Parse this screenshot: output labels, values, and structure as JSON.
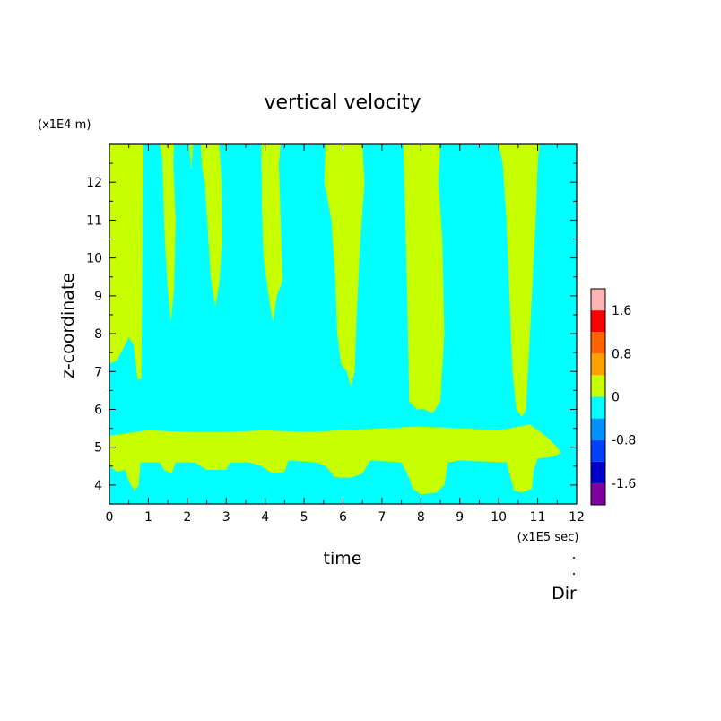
{
  "chart_data": {
    "type": "heatmap",
    "title": "vertical velocity",
    "xlabel": "time",
    "ylabel": "z-coordinate",
    "x_scale_label": "(x1E5 sec)",
    "y_scale_label": "(x1E4 m)",
    "corner_label": "Dir",
    "xlim": [
      0,
      12
    ],
    "ylim": [
      3.5,
      13.0
    ],
    "x_ticks": [
      "0",
      "1",
      "2",
      "3",
      "4",
      "5",
      "6",
      "7",
      "8",
      "9",
      "10",
      "11",
      "12"
    ],
    "y_ticks": [
      "4",
      "5",
      "6",
      "7",
      "8",
      "9",
      "10",
      "11",
      "12"
    ],
    "colorbar": {
      "tick_labels": [
        "1.6",
        "0.8",
        "0",
        "-0.8",
        "-1.6"
      ],
      "tick_values": [
        1.6,
        0.8,
        0,
        -0.8,
        -1.6
      ],
      "levels": [
        -2.0,
        -1.6,
        -1.2,
        -0.8,
        -0.4,
        0,
        0.4,
        0.8,
        1.2,
        1.6,
        2.0
      ],
      "colors": [
        "#8000a0",
        "#0000c8",
        "#0040ff",
        "#0090ff",
        "#00ffff",
        "#c8ff00",
        "#ffa000",
        "#ff6400",
        "#ff0000",
        "#ffb4b4"
      ]
    },
    "background_color": "#00ffff",
    "positive_color": "#c8ff00",
    "positive_regions": [
      [
        [
          0.0,
          13.0
        ],
        [
          0.0,
          7.2
        ],
        [
          0.2,
          7.3
        ],
        [
          0.5,
          7.9
        ],
        [
          0.62,
          7.7
        ],
        [
          0.72,
          6.8
        ],
        [
          0.82,
          6.8
        ],
        [
          0.88,
          13.0
        ]
      ],
      [
        [
          1.3,
          13.0
        ],
        [
          1.36,
          12.6
        ],
        [
          1.42,
          10.5
        ],
        [
          1.5,
          9.2
        ],
        [
          1.58,
          8.3
        ],
        [
          1.66,
          9.2
        ],
        [
          1.7,
          11.0
        ],
        [
          1.64,
          12.5
        ],
        [
          1.66,
          13.0
        ]
      ],
      [
        [
          2.05,
          13.0
        ],
        [
          2.1,
          12.3
        ],
        [
          2.15,
          13.0
        ]
      ],
      [
        [
          2.35,
          13.0
        ],
        [
          2.38,
          12.4
        ],
        [
          2.45,
          12.0
        ],
        [
          2.5,
          11.2
        ],
        [
          2.6,
          9.5
        ],
        [
          2.72,
          8.7
        ],
        [
          2.82,
          9.3
        ],
        [
          2.9,
          10.5
        ],
        [
          2.88,
          12.0
        ],
        [
          2.82,
          13.0
        ]
      ],
      [
        [
          3.9,
          13.0
        ],
        [
          3.92,
          11.2
        ],
        [
          3.96,
          10.0
        ],
        [
          4.1,
          8.9
        ],
        [
          4.2,
          8.3
        ],
        [
          4.3,
          9.0
        ],
        [
          4.45,
          9.4
        ],
        [
          4.4,
          11.0
        ],
        [
          4.35,
          12.5
        ],
        [
          4.4,
          13.0
        ]
      ],
      [
        [
          5.55,
          13.0
        ],
        [
          5.52,
          12.0
        ],
        [
          5.7,
          11.0
        ],
        [
          5.8,
          9.5
        ],
        [
          5.85,
          8.0
        ],
        [
          5.95,
          7.2
        ],
        [
          6.1,
          7.0
        ],
        [
          6.2,
          6.6
        ],
        [
          6.3,
          7.0
        ],
        [
          6.35,
          8.5
        ],
        [
          6.45,
          10.5
        ],
        [
          6.55,
          12.0
        ],
        [
          6.5,
          13.0
        ]
      ],
      [
        [
          7.55,
          13.0
        ],
        [
          7.6,
          11.0
        ],
        [
          7.65,
          9.0
        ],
        [
          7.7,
          6.2
        ],
        [
          7.9,
          6.0
        ],
        [
          8.1,
          6.0
        ],
        [
          8.3,
          5.9
        ],
        [
          8.5,
          6.2
        ],
        [
          8.6,
          8.0
        ],
        [
          8.55,
          10.5
        ],
        [
          8.45,
          12.0
        ],
        [
          8.5,
          13.0
        ]
      ],
      [
        [
          10.0,
          13.0
        ],
        [
          10.1,
          12.5
        ],
        [
          10.2,
          11.0
        ],
        [
          10.35,
          7.0
        ],
        [
          10.45,
          6.0
        ],
        [
          10.6,
          5.8
        ],
        [
          10.7,
          6.0
        ],
        [
          10.8,
          8.0
        ],
        [
          10.95,
          11.0
        ],
        [
          11.0,
          12.5
        ],
        [
          11.05,
          13.0
        ]
      ],
      [
        [
          0.0,
          5.3
        ],
        [
          0.3,
          5.35
        ],
        [
          1.0,
          5.45
        ],
        [
          2.0,
          5.4
        ],
        [
          3.0,
          5.4
        ],
        [
          4.0,
          5.45
        ],
        [
          5.0,
          5.4
        ],
        [
          6.0,
          5.45
        ],
        [
          7.0,
          5.5
        ],
        [
          8.0,
          5.55
        ],
        [
          9.0,
          5.5
        ],
        [
          10.0,
          5.45
        ],
        [
          10.8,
          5.6
        ],
        [
          11.2,
          5.3
        ],
        [
          11.5,
          5.0
        ],
        [
          11.6,
          4.85
        ],
        [
          11.4,
          4.75
        ],
        [
          11.0,
          4.7
        ],
        [
          10.9,
          4.4
        ],
        [
          10.85,
          3.9
        ],
        [
          10.6,
          3.8
        ],
        [
          10.4,
          3.85
        ],
        [
          10.3,
          4.2
        ],
        [
          10.2,
          4.6
        ],
        [
          9.0,
          4.65
        ],
        [
          8.7,
          4.6
        ],
        [
          8.6,
          4.0
        ],
        [
          8.4,
          3.8
        ],
        [
          8.0,
          3.75
        ],
        [
          7.8,
          3.9
        ],
        [
          7.65,
          4.3
        ],
        [
          7.5,
          4.6
        ],
        [
          6.7,
          4.65
        ],
        [
          6.5,
          4.3
        ],
        [
          6.2,
          4.2
        ],
        [
          5.8,
          4.2
        ],
        [
          5.55,
          4.5
        ],
        [
          5.3,
          4.6
        ],
        [
          4.6,
          4.65
        ],
        [
          4.5,
          4.35
        ],
        [
          4.2,
          4.3
        ],
        [
          3.9,
          4.5
        ],
        [
          3.6,
          4.6
        ],
        [
          3.1,
          4.6
        ],
        [
          3.0,
          4.4
        ],
        [
          2.5,
          4.4
        ],
        [
          2.2,
          4.6
        ],
        [
          1.7,
          4.6
        ],
        [
          1.6,
          4.3
        ],
        [
          1.4,
          4.4
        ],
        [
          1.3,
          4.6
        ],
        [
          0.8,
          4.6
        ],
        [
          0.75,
          4.0
        ],
        [
          0.65,
          3.85
        ],
        [
          0.5,
          4.1
        ],
        [
          0.4,
          4.4
        ],
        [
          0.2,
          4.35
        ],
        [
          0.0,
          4.5
        ]
      ]
    ]
  }
}
